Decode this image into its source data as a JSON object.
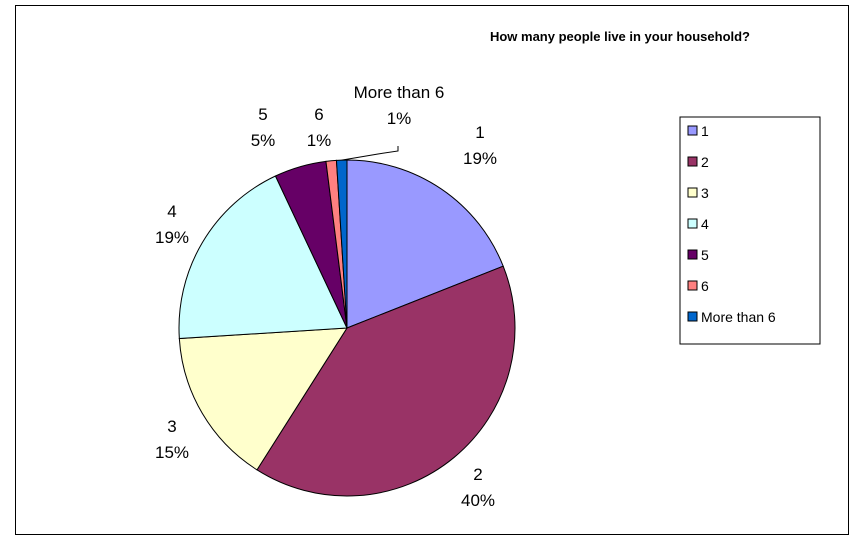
{
  "chart_data": {
    "type": "pie",
    "title": "How many people live in your household?",
    "categories": [
      "1",
      "2",
      "3",
      "4",
      "5",
      "6",
      "More than 6"
    ],
    "values": [
      19,
      40,
      15,
      19,
      5,
      1,
      1
    ],
    "value_labels": [
      "19%",
      "40%",
      "15%",
      "19%",
      "5%",
      "1%",
      "1%"
    ],
    "colors": [
      "#9999FF",
      "#993366",
      "#FFFFCC",
      "#CCFFFF",
      "#660066",
      "#FF8080",
      "#0066CC"
    ],
    "start_angle_deg": 0,
    "direction": "clockwise",
    "legend": "right"
  }
}
